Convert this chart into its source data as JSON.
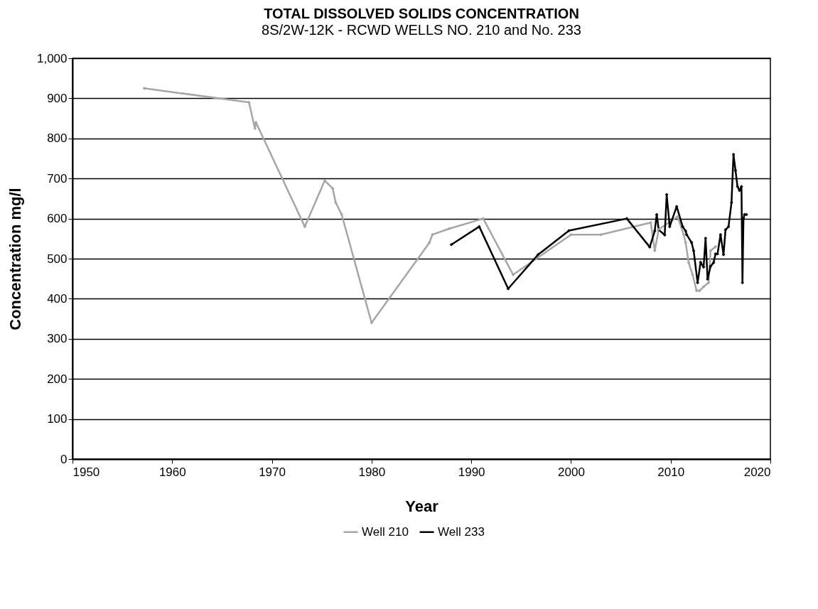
{
  "chart_data": {
    "type": "line",
    "title": "TOTAL DISSOLVED SOLIDS CONCENTRATION",
    "subtitle": "8S/2W-12K - RCWD WELLS NO. 210 and No. 233",
    "xlabel": "Year",
    "ylabel": "Concentration mg/l",
    "series": [
      {
        "name": "Well 210",
        "color": "#a6a6a6",
        "x": [
          1957.2,
          1967.7,
          1968.3,
          1968.4,
          1973.3,
          1975.3,
          1976.1,
          1976.4,
          1977.0,
          1980.0,
          1985.8,
          1986.1,
          1987.8,
          1991.2,
          1994.2,
          2000.0,
          2003.0,
          2008.0,
          2008.4,
          2008.8,
          2010.7,
          2011.3,
          2011.5,
          2011.8,
          2012.2,
          2012.6,
          2012.9,
          2013.3,
          2013.8,
          2014.0,
          2014.5
        ],
        "values": [
          925,
          890,
          825,
          840,
          580,
          695,
          675,
          640,
          610,
          340,
          540,
          560,
          575,
          600,
          460,
          560,
          560,
          590,
          520,
          573,
          605,
          560,
          540,
          490,
          460,
          420,
          420,
          430,
          440,
          520,
          530
        ]
      },
      {
        "name": "Well 233",
        "color": "#000000",
        "x": [
          1988.0,
          1990.8,
          1993.7,
          1996.7,
          1999.8,
          2005.6,
          2007.9,
          2008.4,
          2008.6,
          2008.8,
          2009.4,
          2009.6,
          2009.9,
          2010.6,
          2011.2,
          2011.5,
          2011.6,
          2012.1,
          2012.3,
          2012.7,
          2013.0,
          2013.3,
          2013.5,
          2013.7,
          2014.0,
          2014.3,
          2014.5,
          2014.7,
          2015.0,
          2015.3,
          2015.5,
          2015.8,
          2016.1,
          2016.3,
          2016.5,
          2016.7,
          2016.9,
          2017.1,
          2017.2,
          2017.3,
          2017.4,
          2017.6
        ],
        "values": [
          535,
          580,
          425,
          510,
          570,
          600,
          529,
          569,
          610,
          572,
          559,
          660,
          580,
          630,
          580,
          569,
          560,
          540,
          520,
          440,
          491,
          479,
          551,
          449,
          481,
          490,
          512,
          512,
          560,
          510,
          572,
          580,
          640,
          760,
          720,
          680,
          670,
          680,
          440,
          600,
          610,
          610
        ]
      }
    ],
    "xlim": [
      1950,
      2020
    ],
    "xticks": [
      1950,
      1960,
      1970,
      1980,
      1990,
      2000,
      2010,
      2020
    ],
    "ylim": [
      0,
      1000
    ],
    "yticks": [
      0,
      100,
      200,
      300,
      400,
      500,
      600,
      700,
      800,
      900,
      {
        "value": 1000,
        "label": "1,000"
      }
    ],
    "grid": "y",
    "legend": "bottom",
    "marker": "diamond",
    "line_style": "solid"
  }
}
